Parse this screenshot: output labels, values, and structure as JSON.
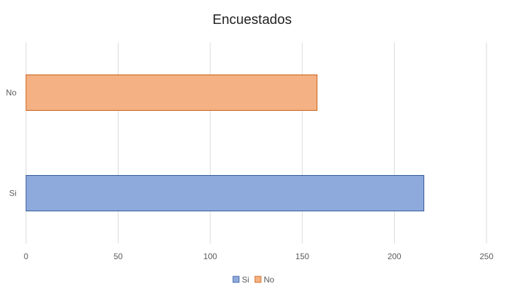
{
  "chart_data": {
    "type": "bar",
    "orientation": "horizontal",
    "title": "Encuestados",
    "categories": [
      "Si",
      "No"
    ],
    "series": [
      {
        "name": "Si",
        "values": [
          216,
          null
        ],
        "color": "#8EA9DB",
        "stroke": "#2F5597"
      },
      {
        "name": "No",
        "values": [
          null,
          158
        ],
        "color": "#F4B183",
        "stroke": "#C55A11"
      }
    ],
    "xlim": [
      0,
      250
    ],
    "xticks": [
      0,
      50,
      100,
      150,
      200,
      250
    ],
    "grid": true,
    "legend": "bottom"
  }
}
